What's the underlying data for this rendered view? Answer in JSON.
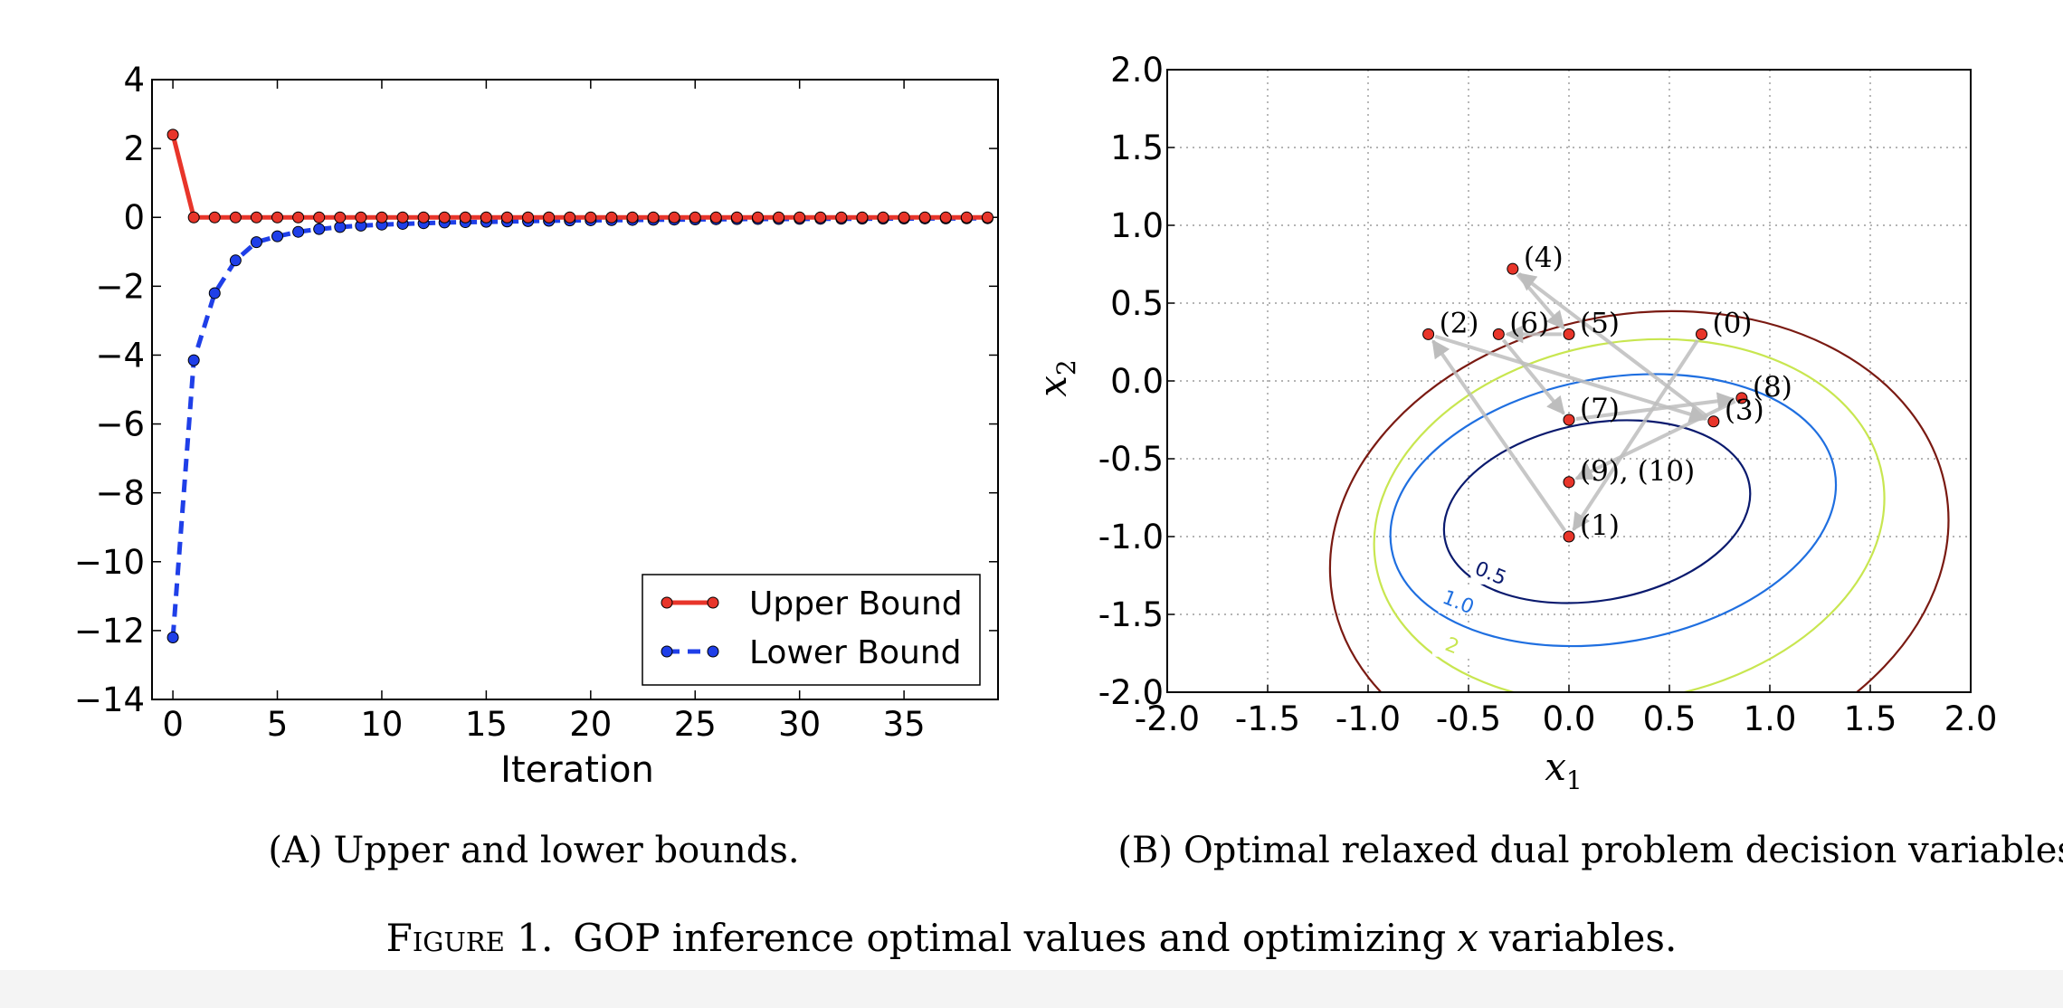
{
  "chart_data": [
    {
      "type": "line",
      "panel_label": "(A)",
      "caption": "Upper and lower bounds.",
      "xlabel": "Iteration",
      "ylabel": "",
      "xlim": [
        -1,
        39.5
      ],
      "ylim": [
        -14,
        4
      ],
      "xticks": [
        0,
        5,
        10,
        15,
        20,
        25,
        30,
        35
      ],
      "yticks": [
        4,
        2,
        0,
        -2,
        -4,
        -6,
        -8,
        -10,
        -12,
        -14
      ],
      "yticklabels": [
        "4",
        "2",
        "0",
        "−2",
        "−4",
        "−6",
        "−8",
        "−10",
        "−12",
        "−14"
      ],
      "grid": false,
      "legend_position": "lower-right",
      "x": [
        0,
        1,
        2,
        3,
        4,
        5,
        6,
        7,
        8,
        9,
        10,
        11,
        12,
        13,
        14,
        15,
        16,
        17,
        18,
        19,
        20,
        21,
        22,
        23,
        24,
        25,
        26,
        27,
        28,
        29,
        30,
        31,
        32,
        33,
        34,
        35,
        36,
        37,
        38,
        39
      ],
      "series": [
        {
          "name": "Upper Bound",
          "color": "#e8352a",
          "style": "solid",
          "values": [
            2.4,
            0,
            0,
            0,
            0,
            0,
            0,
            0,
            0,
            0,
            0,
            0,
            0,
            0,
            0,
            0,
            0,
            0,
            0,
            0,
            0,
            0,
            0,
            0,
            0,
            0,
            0,
            0,
            0,
            0,
            0,
            0,
            0,
            0,
            0,
            0,
            0,
            0,
            0,
            0
          ]
        },
        {
          "name": "Lower Bound",
          "color": "#1f3fe8",
          "style": "dashed",
          "values": [
            -12.2,
            -4.15,
            -2.2,
            -1.25,
            -0.72,
            -0.55,
            -0.42,
            -0.34,
            -0.28,
            -0.24,
            -0.21,
            -0.19,
            -0.17,
            -0.15,
            -0.14,
            -0.13,
            -0.12,
            -0.11,
            -0.1,
            -0.09,
            -0.085,
            -0.08,
            -0.075,
            -0.07,
            -0.065,
            -0.06,
            -0.055,
            -0.05,
            -0.048,
            -0.046,
            -0.044,
            -0.042,
            -0.04,
            -0.038,
            -0.036,
            -0.034,
            -0.032,
            -0.03,
            -0.028,
            -0.026
          ]
        }
      ]
    },
    {
      "type": "scatter",
      "panel_label": "(B)",
      "caption": "Optimal relaxed dual problem decision variables.",
      "xlabel": "x",
      "xlabel_sub": "1",
      "ylabel": "x",
      "ylabel_sub": "2",
      "xlim": [
        -2.0,
        2.0
      ],
      "ylim": [
        -2.0,
        2.0
      ],
      "ticks": [
        -2.0,
        -1.5,
        -1.0,
        -0.5,
        0.0,
        0.5,
        1.0,
        1.5,
        2.0
      ],
      "ticklabels": [
        "-2.0",
        "-1.5",
        "-1.0",
        "-0.5",
        "0.0",
        "0.5",
        "1.0",
        "1.5",
        "2.0"
      ],
      "grid": true,
      "point_color": "#e8352a",
      "points": [
        {
          "label": "(0)",
          "x": 0.66,
          "y": 0.3
        },
        {
          "label": "(1)",
          "x": 0.0,
          "y": -1.0
        },
        {
          "label": "(2)",
          "x": -0.7,
          "y": 0.3
        },
        {
          "label": "(3)",
          "x": 0.72,
          "y": -0.26
        },
        {
          "label": "(4)",
          "x": -0.28,
          "y": 0.72
        },
        {
          "label": "(5)",
          "x": 0.0,
          "y": 0.3
        },
        {
          "label": "(6)",
          "x": -0.35,
          "y": 0.3
        },
        {
          "label": "(7)",
          "x": 0.0,
          "y": -0.25
        },
        {
          "label": "(8)",
          "x": 0.86,
          "y": -0.11
        },
        {
          "label": "(9), (10)",
          "x": 0.0,
          "y": -0.65
        }
      ],
      "arrows": [
        [
          0,
          1
        ],
        [
          1,
          2
        ],
        [
          2,
          3
        ],
        [
          3,
          4
        ],
        [
          4,
          5
        ],
        [
          5,
          6
        ],
        [
          6,
          7
        ],
        [
          7,
          8
        ],
        [
          8,
          9
        ]
      ],
      "arrow_color": "#bdbdbd",
      "contours": [
        {
          "level": "0.5",
          "color": "#0a1a6e",
          "cx": 0.14,
          "cy": -0.84,
          "rx": 0.77,
          "ry": 0.57,
          "angle": -10
        },
        {
          "level": "1.0",
          "color": "#1f6fe0",
          "cx": 0.22,
          "cy": -0.83,
          "rx": 1.12,
          "ry": 0.85,
          "angle": -10
        },
        {
          "level": "2",
          "color": "#c8e650",
          "cx": 0.3,
          "cy": -0.9,
          "rx": 1.28,
          "ry": 1.15,
          "angle": -10
        },
        {
          "level": "",
          "color": "#7a1a12",
          "cx": 0.35,
          "cy": -1.05,
          "rx": 1.55,
          "ry": 1.48,
          "angle": -10
        }
      ]
    }
  ],
  "figure_caption": {
    "prefix": "Figure 1.",
    "text_before": "GOP inference optimal values and optimizing",
    "var": "x",
    "text_after": "variables."
  }
}
